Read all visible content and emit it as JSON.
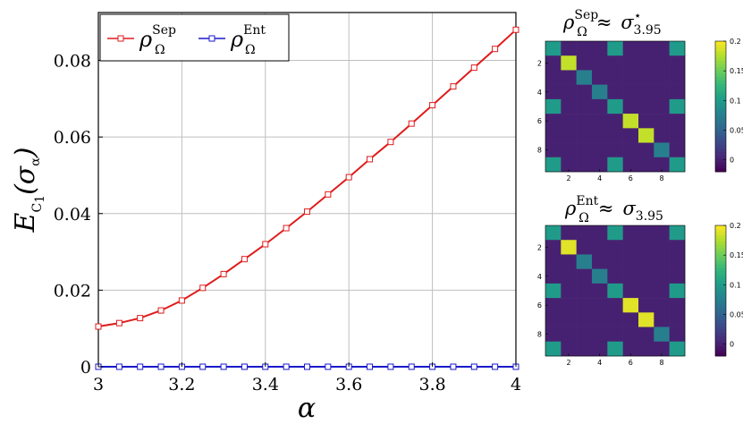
{
  "colors": {
    "sep_series": "#e01b1b",
    "ent_series": "#1a1acc",
    "grid": "#bfbfbf",
    "viridis": [
      "#440154",
      "#482878",
      "#3e4989",
      "#31688e",
      "#26828e",
      "#1f9e89",
      "#35b779",
      "#6ece58",
      "#b5de2b",
      "#fde725"
    ]
  },
  "chart_data": [
    {
      "type": "line",
      "xlabel": "α",
      "ylabel": "E_C1(σ_α)",
      "xlim": [
        3,
        4
      ],
      "ylim": [
        0,
        0.0925
      ],
      "x_ticks": [
        "3",
        "3.2",
        "3.4",
        "3.6",
        "3.8",
        "4"
      ],
      "y_ticks": [
        "0",
        "0.02",
        "0.04",
        "0.06",
        "0.08"
      ],
      "grid": true,
      "legend_position": "top-left",
      "x": [
        3.0,
        3.05,
        3.1,
        3.15,
        3.2,
        3.25,
        3.3,
        3.35,
        3.4,
        3.45,
        3.5,
        3.55,
        3.6,
        3.65,
        3.7,
        3.75,
        3.8,
        3.85,
        3.9,
        3.95,
        4.0
      ],
      "series": [
        {
          "name": "ρ_Ω^Sep",
          "values": [
            0.0105,
            0.0114,
            0.0127,
            0.0147,
            0.0173,
            0.0206,
            0.0242,
            0.0281,
            0.032,
            0.0362,
            0.0405,
            0.045,
            0.0495,
            0.0542,
            0.0587,
            0.0635,
            0.0683,
            0.0732,
            0.0781,
            0.083,
            0.088
          ]
        },
        {
          "name": "ρ_Ω^Ent",
          "values": [
            0,
            0,
            0,
            0,
            0,
            0,
            0,
            0,
            0,
            0,
            0,
            0,
            0,
            0,
            0,
            0,
            0,
            0,
            0,
            0,
            0
          ]
        }
      ]
    },
    {
      "type": "heatmap",
      "title": "ρ_Ω^Sep ≈ σ*_3.95",
      "x_ticks": [
        "2",
        "4",
        "6",
        "8"
      ],
      "y_ticks": [
        "2",
        "4",
        "6",
        "8"
      ],
      "colorbar_ticks": [
        "0",
        "0.05",
        "0.1",
        "0.15",
        "0.2"
      ],
      "colorbar_range": [
        -0.02,
        0.2
      ],
      "matrix": [
        [
          0.1,
          0,
          0,
          0,
          0.1,
          0,
          0,
          0,
          0.1
        ],
        [
          0,
          0.18,
          0,
          0,
          0,
          0,
          0,
          0,
          0
        ],
        [
          0,
          0,
          0.075,
          0,
          0,
          0,
          0,
          0,
          0
        ],
        [
          0,
          0,
          0,
          0.075,
          0,
          0,
          0,
          0,
          0
        ],
        [
          0.1,
          0,
          0,
          0,
          0.1,
          0,
          0,
          0,
          0.1
        ],
        [
          0,
          0,
          0,
          0,
          0,
          0.18,
          0,
          0,
          0
        ],
        [
          0,
          0,
          0,
          0,
          0,
          0,
          0.18,
          0,
          0
        ],
        [
          0,
          0,
          0,
          0,
          0,
          0,
          0,
          0.075,
          0
        ],
        [
          0.1,
          0,
          0,
          0,
          0.1,
          0,
          0,
          0,
          0.1
        ]
      ]
    },
    {
      "type": "heatmap",
      "title": "ρ_Ω^Ent ≈ σ_3.95",
      "x_ticks": [
        "2",
        "4",
        "6",
        "8"
      ],
      "y_ticks": [
        "2",
        "4",
        "6",
        "8"
      ],
      "colorbar_ticks": [
        "0",
        "0.05",
        "0.1",
        "0.15",
        "0.2"
      ],
      "colorbar_range": [
        -0.02,
        0.2
      ],
      "matrix": [
        [
          0.1,
          0,
          0,
          0,
          0.1,
          0,
          0,
          0,
          0.1
        ],
        [
          0,
          0.19,
          0,
          0,
          0,
          0,
          0,
          0,
          0
        ],
        [
          0,
          0,
          0.075,
          0,
          0,
          0,
          0,
          0,
          0
        ],
        [
          0,
          0,
          0,
          0.075,
          0,
          0,
          0,
          0,
          0
        ],
        [
          0.1,
          0,
          0,
          0,
          0.1,
          0,
          0,
          0,
          0.1
        ],
        [
          0,
          0,
          0,
          0,
          0,
          0.19,
          0,
          0,
          0
        ],
        [
          0,
          0,
          0,
          0,
          0,
          0,
          0.19,
          0,
          0
        ],
        [
          0,
          0,
          0,
          0,
          0,
          0,
          0,
          0.075,
          0
        ],
        [
          0.1,
          0,
          0,
          0,
          0.1,
          0,
          0,
          0,
          0.1
        ]
      ]
    }
  ]
}
